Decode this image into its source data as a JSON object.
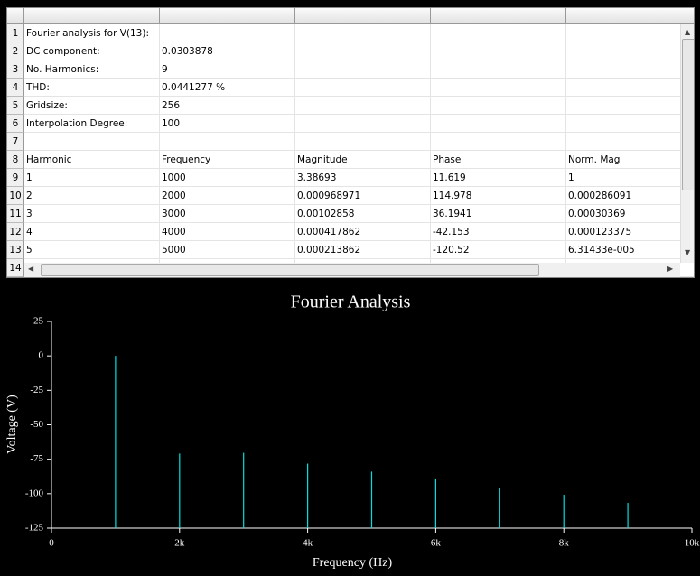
{
  "table": {
    "row_numbers": [
      1,
      2,
      3,
      4,
      5,
      6,
      7,
      8,
      9,
      10,
      11,
      12,
      13,
      14
    ],
    "rows": [
      [
        "Fourier analysis for V(13):"
      ],
      [
        "DC component:",
        "0.0303878"
      ],
      [
        "No. Harmonics:",
        "9"
      ],
      [
        "THD:",
        "0.0441277 %"
      ],
      [
        "Gridsize:",
        "256"
      ],
      [
        "Interpolation Degree:",
        "100"
      ],
      [],
      [
        "Harmonic",
        "Frequency",
        "Magnitude",
        "Phase",
        "Norm. Mag"
      ],
      [
        "1",
        "1000",
        "3.38693",
        "11.619",
        "1"
      ],
      [
        "2",
        "2000",
        "0.000968971",
        "114.978",
        "0.000286091"
      ],
      [
        "3",
        "3000",
        "0.00102858",
        "36.1941",
        "0.00030369"
      ],
      [
        "4",
        "4000",
        "0.000417862",
        "-42.153",
        "0.000123375"
      ],
      [
        "5",
        "5000",
        "0.000213862",
        "-120.52",
        "6.31433e-005"
      ],
      []
    ]
  },
  "chart_data": {
    "type": "stem",
    "title": "Fourier Analysis",
    "x_label": "Frequency (Hz)",
    "y_label": "Voltage (V)",
    "x": [
      1000,
      2000,
      3000,
      4000,
      5000,
      6000,
      7000,
      8000,
      9000
    ],
    "values": [
      0,
      -70.87,
      -70.35,
      -78.18,
      -83.99,
      -89.6,
      -95.5,
      -100.8,
      -106.7
    ],
    "color": "#00e0e0",
    "xlim": [
      0,
      10000
    ],
    "xticks": [
      0,
      {
        "value": 2000,
        "label": "2k"
      },
      {
        "value": 4000,
        "label": "4k"
      },
      {
        "value": 6000,
        "label": "6k"
      },
      {
        "value": 8000,
        "label": "8k"
      },
      {
        "value": 10000,
        "label": "10k"
      }
    ],
    "ylim": [
      -125,
      25
    ],
    "yticks": [
      25,
      0,
      -25,
      -50,
      -75,
      -100,
      -125
    ],
    "grid": false
  }
}
